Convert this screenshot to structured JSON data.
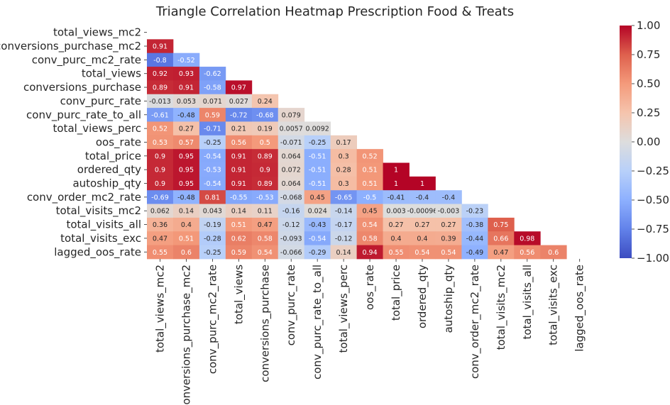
{
  "chart_data": {
    "type": "heatmap",
    "title": "Triangle Correlation Heatmap Prescription Food & Treats",
    "labels": [
      "total_views_mc2",
      "conversions_purchase_mc2",
      "conv_purc_mc2_rate",
      "total_views",
      "conversions_purchase",
      "conv_purc_rate",
      "conv_purc_rate_to_all",
      "total_views_perc",
      "oos_rate",
      "total_price",
      "ordered_qty",
      "autoship_qty",
      "conv_order_mc2_rate",
      "total_visits_mc2",
      "total_visits_all",
      "total_visits_exc",
      "lagged_oos_rate"
    ],
    "mask": "upper-triangle-including-diagonal",
    "colormap": "coolwarm",
    "vmin": -1.0,
    "vmax": 1.0,
    "colorbar_ticks": [
      "1.00",
      "0.75",
      "0.50",
      "0.25",
      "0.00",
      "−0.25",
      "−0.50",
      "−0.75",
      "−1.00"
    ],
    "colorbar_tick_values": [
      1.0,
      0.75,
      0.5,
      0.25,
      0.0,
      -0.25,
      -0.5,
      -0.75,
      -1.0
    ],
    "rows": [
      [],
      [
        "0.91"
      ],
      [
        "-0.8",
        "-0.52"
      ],
      [
        "0.92",
        "0.93",
        "-0.62"
      ],
      [
        "0.89",
        "0.91",
        "-0.58",
        "0.97"
      ],
      [
        "-0.013",
        "0.053",
        "0.071",
        "0.027",
        "0.24"
      ],
      [
        "-0.61",
        "-0.48",
        "0.59",
        "-0.72",
        "-0.68",
        "0.079"
      ],
      [
        "0.52",
        "0.27",
        "-0.71",
        "0.21",
        "0.19",
        "0.0057",
        "0.0092"
      ],
      [
        "0.53",
        "0.57",
        "-0.25",
        "0.56",
        "0.5",
        "-0.071",
        "-0.25",
        "0.17"
      ],
      [
        "0.9",
        "0.95",
        "-0.54",
        "0.91",
        "0.89",
        "0.064",
        "-0.51",
        "0.3",
        "0.52"
      ],
      [
        "0.9",
        "0.95",
        "-0.53",
        "0.91",
        "0.9",
        "0.072",
        "-0.51",
        "0.28",
        "0.51",
        "1"
      ],
      [
        "0.9",
        "0.95",
        "-0.54",
        "0.91",
        "0.89",
        "0.064",
        "-0.51",
        "0.3",
        "0.51",
        "1",
        "1"
      ],
      [
        "-0.69",
        "-0.48",
        "0.81",
        "-0.55",
        "-0.53",
        "-0.068",
        "0.45",
        "-0.65",
        "-0.5",
        "-0.41",
        "-0.4",
        "-0.4"
      ],
      [
        "0.062",
        "0.14",
        "0.043",
        "0.14",
        "0.11",
        "-0.16",
        "0.024",
        "-0.14",
        "0.45",
        "0.003",
        "-0.00096",
        "-0.003",
        "-0.23"
      ],
      [
        "0.36",
        "0.4",
        "-0.19",
        "0.51",
        "0.47",
        "-0.12",
        "-0.43",
        "-0.17",
        "0.54",
        "0.27",
        "0.27",
        "0.27",
        "-0.38",
        "0.75"
      ],
      [
        "0.47",
        "0.51",
        "-0.28",
        "0.62",
        "0.58",
        "-0.093",
        "-0.54",
        "-0.12",
        "0.58",
        "0.4",
        "0.4",
        "0.39",
        "-0.44",
        "0.66",
        "0.98"
      ],
      [
        "0.55",
        "0.6",
        "-0.25",
        "0.59",
        "0.54",
        "-0.066",
        "-0.29",
        "0.14",
        "0.94",
        "0.55",
        "0.54",
        "0.54",
        "-0.49",
        "0.47",
        "0.56",
        "0.6"
      ]
    ]
  }
}
